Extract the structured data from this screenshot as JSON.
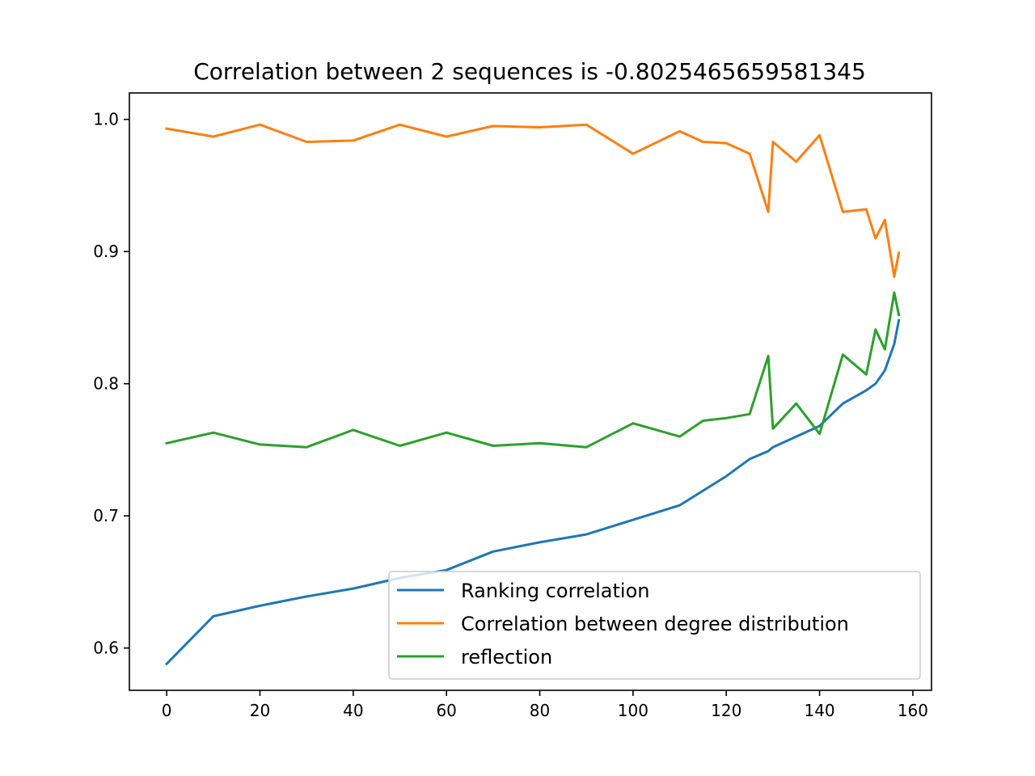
{
  "chart_data": {
    "type": "line",
    "title": "Correlation between 2 sequences is -0.8025465659581345",
    "xlabel": "",
    "ylabel": "",
    "xlim": [
      -8,
      164
    ],
    "ylim": [
      0.568,
      1.02
    ],
    "x_ticks": [
      0,
      20,
      40,
      60,
      80,
      100,
      120,
      140,
      160
    ],
    "y_ticks": [
      0.6,
      0.7,
      0.8,
      0.9,
      1.0
    ],
    "y_tick_labels": [
      "0.6",
      "0.7",
      "0.8",
      "0.9",
      "1.0"
    ],
    "grid": false,
    "legend_position": "lower right",
    "x": [
      0,
      10,
      20,
      30,
      40,
      50,
      60,
      70,
      80,
      90,
      100,
      110,
      115,
      120,
      125,
      129,
      130,
      135,
      140,
      145,
      150,
      152,
      154,
      156,
      157
    ],
    "series": [
      {
        "name": "Ranking correlation",
        "color": "#1f77b4",
        "values": [
          0.588,
          0.624,
          0.632,
          0.639,
          0.645,
          0.653,
          0.659,
          0.673,
          0.68,
          0.686,
          0.697,
          0.708,
          0.719,
          0.73,
          0.743,
          0.749,
          0.752,
          0.76,
          0.768,
          0.785,
          0.795,
          0.8,
          0.81,
          0.83,
          0.848
        ]
      },
      {
        "name": "Correlation between degree distribution",
        "color": "#ff7f0e",
        "values": [
          0.993,
          0.987,
          0.996,
          0.983,
          0.984,
          0.996,
          0.987,
          0.995,
          0.994,
          0.996,
          0.974,
          0.991,
          0.983,
          0.982,
          0.974,
          0.93,
          0.983,
          0.968,
          0.988,
          0.93,
          0.932,
          0.91,
          0.924,
          0.881,
          0.899
        ]
      },
      {
        "name": "reflection",
        "color": "#2ca02c",
        "values": [
          0.755,
          0.763,
          0.754,
          0.752,
          0.765,
          0.753,
          0.763,
          0.753,
          0.755,
          0.752,
          0.77,
          0.76,
          0.772,
          0.774,
          0.777,
          0.821,
          0.766,
          0.785,
          0.762,
          0.822,
          0.807,
          0.841,
          0.826,
          0.869,
          0.852
        ]
      }
    ]
  }
}
